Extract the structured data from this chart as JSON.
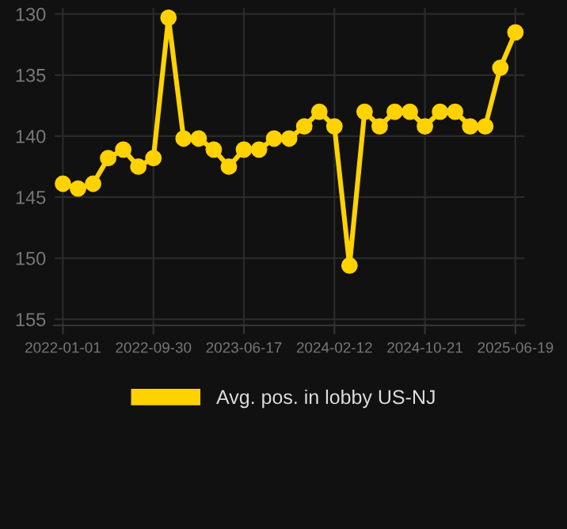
{
  "chart_data": {
    "type": "line",
    "categories": [
      "2022-01-01",
      null,
      null,
      null,
      null,
      null,
      "2022-09-30",
      null,
      null,
      null,
      null,
      null,
      "2023-06-17",
      null,
      null,
      null,
      null,
      null,
      "2024-02-12",
      null,
      null,
      null,
      null,
      null,
      "2024-10-21",
      null,
      null,
      null,
      null,
      null,
      "2025-06-19"
    ],
    "series": [
      {
        "name": "Avg. pos. in lobby US-NJ",
        "color": "#ffd200",
        "values": [
          143.9,
          144.3,
          143.9,
          141.8,
          141.1,
          142.5,
          141.8,
          130.3,
          140.2,
          140.2,
          141.1,
          142.5,
          141.1,
          141.1,
          140.2,
          140.2,
          139.2,
          138.0,
          139.2,
          150.6,
          138.0,
          139.2,
          138.0,
          138.0,
          139.2,
          138.0,
          138.0,
          139.2,
          139.2,
          134.4,
          131.5
        ]
      }
    ],
    "ylim": [
      155.5,
      129.5
    ],
    "yticks": [
      130,
      135,
      140,
      145,
      150,
      155
    ],
    "grid": true,
    "legend": "bottom",
    "marker": "circle",
    "line_style": "solid"
  }
}
